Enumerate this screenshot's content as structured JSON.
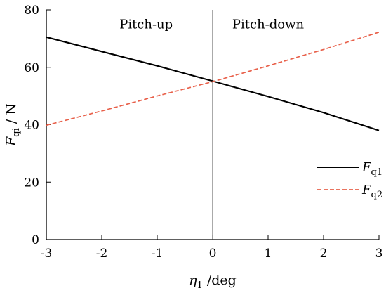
{
  "chart_data": {
    "type": "line",
    "xlabel": {
      "main": "η",
      "sub": "1",
      "rest": " /deg"
    },
    "ylabel": {
      "main": "F",
      "sub": "qi",
      "rest": " / N"
    },
    "xlim": [
      -3,
      3
    ],
    "ylim": [
      0,
      80
    ],
    "xticks": [
      "-3",
      "-2",
      "-1",
      "0",
      "1",
      "2",
      "3"
    ],
    "yticks": [
      "0",
      "20",
      "40",
      "60",
      "80"
    ],
    "grid": false,
    "legend_position": "bottom-right",
    "annotations": [
      {
        "text": "Pitch-up",
        "x": -1.2,
        "y": 75
      },
      {
        "text": "Pitch-down",
        "x": 1.0,
        "y": 75
      }
    ],
    "vline": {
      "x": 0
    },
    "series": [
      {
        "name": "F",
        "name_sub": "q1",
        "style": "solid",
        "color": "#000000",
        "x": [
          -3,
          -2,
          -1,
          0,
          1,
          2,
          3
        ],
        "y": [
          70.5,
          65.5,
          60.5,
          55.2,
          49.8,
          44.2,
          38.0
        ]
      },
      {
        "name": "F",
        "name_sub": "q2",
        "style": "dashed",
        "color": "#e8604a",
        "x": [
          -3,
          -2,
          -1,
          0,
          1,
          2,
          3
        ],
        "y": [
          39.8,
          44.8,
          50.0,
          55.0,
          60.5,
          66.2,
          72.2
        ]
      }
    ]
  }
}
